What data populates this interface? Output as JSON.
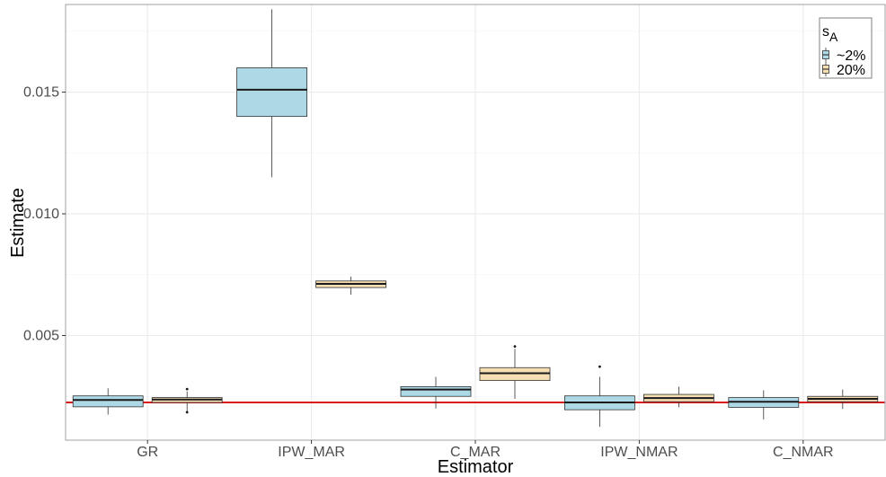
{
  "chart_data": {
    "type": "boxplot",
    "xlabel": "Estimator",
    "ylabel": "Estimate",
    "ylim": [
      0.0007,
      0.0186
    ],
    "yticks": [
      0.005,
      0.01,
      0.015
    ],
    "ytick_labels": [
      "0.005",
      "0.010",
      "0.015"
    ],
    "categories": [
      "GR",
      "IPW_MAR",
      "C_MAR",
      "IPW_NMAR",
      "C_NMAR"
    ],
    "reference_line": {
      "value": 0.00225,
      "color": "#d7191c"
    },
    "grid": true,
    "legend": {
      "title_main": "s",
      "title_sub": "A",
      "position": "top-right",
      "entries": [
        {
          "label": "~2%",
          "color": "#add8e6"
        },
        {
          "label": "20%",
          "color": "#f5deb3"
        }
      ]
    },
    "series": [
      {
        "name": "~2%",
        "color": "#add8e6",
        "boxes": [
          {
            "category": "GR",
            "min": 0.00175,
            "q1": 0.00207,
            "median": 0.00235,
            "q3": 0.00252,
            "max": 0.00283,
            "outliers": []
          },
          {
            "category": "IPW_MAR",
            "min": 0.0115,
            "q1": 0.014,
            "median": 0.0151,
            "q3": 0.016,
            "max": 0.0184,
            "outliers": []
          },
          {
            "category": "C_MAR",
            "min": 0.002,
            "q1": 0.0025,
            "median": 0.00278,
            "q3": 0.0029,
            "max": 0.0033,
            "outliers": []
          },
          {
            "category": "IPW_NMAR",
            "min": 0.00125,
            "q1": 0.00195,
            "median": 0.00225,
            "q3": 0.00252,
            "max": 0.0033,
            "outliers": [
              0.00372
            ]
          },
          {
            "category": "C_NMAR",
            "min": 0.00155,
            "q1": 0.00205,
            "median": 0.00228,
            "q3": 0.00245,
            "max": 0.00275,
            "outliers": []
          }
        ]
      },
      {
        "name": "20%",
        "color": "#f5deb3",
        "boxes": [
          {
            "category": "GR",
            "min": 0.00182,
            "q1": 0.00225,
            "median": 0.00237,
            "q3": 0.00245,
            "max": 0.0027,
            "outliers": [
              0.00185,
              0.0028
            ]
          },
          {
            "category": "IPW_MAR",
            "min": 0.00668,
            "q1": 0.00697,
            "median": 0.00712,
            "q3": 0.00724,
            "max": 0.00742,
            "outliers": []
          },
          {
            "category": "C_MAR",
            "min": 0.0024,
            "q1": 0.00315,
            "median": 0.00345,
            "q3": 0.00368,
            "max": 0.00445,
            "outliers": [
              0.00455
            ]
          },
          {
            "category": "IPW_NMAR",
            "min": 0.00205,
            "q1": 0.00228,
            "median": 0.00243,
            "q3": 0.00258,
            "max": 0.0029,
            "outliers": []
          },
          {
            "category": "C_NMAR",
            "min": 0.00198,
            "q1": 0.00228,
            "median": 0.0024,
            "q3": 0.0025,
            "max": 0.00278,
            "outliers": []
          }
        ]
      }
    ]
  }
}
